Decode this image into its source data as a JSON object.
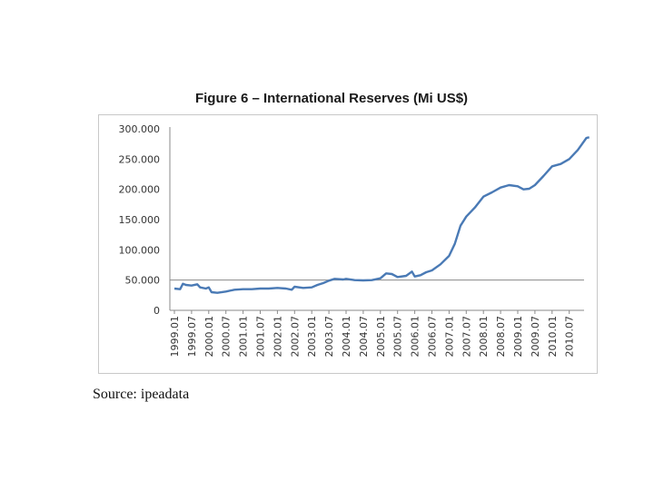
{
  "chart_data": {
    "type": "line",
    "title": "Figure 6 – International Reserves (Mi US$)",
    "xlabel": "",
    "ylabel": "",
    "ylim": [
      0,
      300000
    ],
    "y_ticks": [
      {
        "value": 300000,
        "label": "300.000"
      },
      {
        "value": 250000,
        "label": "250.000"
      },
      {
        "value": 200000,
        "label": "200.000"
      },
      {
        "value": 150000,
        "label": "150.000"
      },
      {
        "value": 100000,
        "label": "100.000"
      },
      {
        "value": 50000,
        "label": "50.000"
      },
      {
        "value": 0,
        "label": "0"
      }
    ],
    "x_ticks": [
      "1999.01",
      "1999.07",
      "2000.01",
      "2000.07",
      "2001.01",
      "2001.07",
      "2002.01",
      "2002.07",
      "2003.01",
      "2003.07",
      "2004.01",
      "2004.07",
      "2005.01",
      "2005.07",
      "2006.01",
      "2006.07",
      "2007.01",
      "2007.07",
      "2008.01",
      "2008.07",
      "2009.01",
      "2009.07",
      "2010.01",
      "2010.07"
    ],
    "gridlines": [
      50000
    ],
    "series": [
      {
        "name": "International Reserves",
        "color": "#4a7ab5",
        "points": [
          [
            "1999.01",
            36000
          ],
          [
            "1999.03",
            35000
          ],
          [
            "1999.04",
            44000
          ],
          [
            "1999.05",
            42000
          ],
          [
            "1999.07",
            41000
          ],
          [
            "1999.09",
            43000
          ],
          [
            "1999.10",
            38000
          ],
          [
            "1999.12",
            36000
          ],
          [
            "2000.01",
            38000
          ],
          [
            "2000.02",
            30000
          ],
          [
            "2000.04",
            29000
          ],
          [
            "2000.07",
            31000
          ],
          [
            "2000.10",
            34000
          ],
          [
            "2001.01",
            35000
          ],
          [
            "2001.04",
            35000
          ],
          [
            "2001.07",
            36000
          ],
          [
            "2001.10",
            36000
          ],
          [
            "2002.01",
            37000
          ],
          [
            "2002.04",
            36000
          ],
          [
            "2002.06",
            34000
          ],
          [
            "2002.07",
            39000
          ],
          [
            "2002.10",
            37000
          ],
          [
            "2003.01",
            38000
          ],
          [
            "2003.03",
            42000
          ],
          [
            "2003.05",
            45000
          ],
          [
            "2003.07",
            49000
          ],
          [
            "2003.09",
            52000
          ],
          [
            "2003.12",
            51000
          ],
          [
            "2004.01",
            52000
          ],
          [
            "2004.04",
            50000
          ],
          [
            "2004.07",
            49500
          ],
          [
            "2004.10",
            50000
          ],
          [
            "2005.01",
            53000
          ],
          [
            "2005.03",
            61000
          ],
          [
            "2005.05",
            60000
          ],
          [
            "2005.07",
            55000
          ],
          [
            "2005.10",
            57000
          ],
          [
            "2005.12",
            64000
          ],
          [
            "2006.01",
            56000
          ],
          [
            "2006.03",
            58000
          ],
          [
            "2006.05",
            63000
          ],
          [
            "2006.07",
            66000
          ],
          [
            "2006.10",
            76000
          ],
          [
            "2007.01",
            90000
          ],
          [
            "2007.03",
            110000
          ],
          [
            "2007.05",
            140000
          ],
          [
            "2007.07",
            155000
          ],
          [
            "2007.10",
            170000
          ],
          [
            "2008.01",
            188000
          ],
          [
            "2008.04",
            195000
          ],
          [
            "2008.07",
            203000
          ],
          [
            "2008.10",
            207000
          ],
          [
            "2009.01",
            205000
          ],
          [
            "2009.03",
            200000
          ],
          [
            "2009.05",
            201000
          ],
          [
            "2009.07",
            207000
          ],
          [
            "2009.10",
            222000
          ],
          [
            "2010.01",
            238000
          ],
          [
            "2010.04",
            242000
          ],
          [
            "2010.07",
            250000
          ],
          [
            "2010.10",
            265000
          ],
          [
            "2011.01",
            285000
          ],
          [
            "2011.02",
            286000
          ]
        ]
      }
    ]
  },
  "source": "Source: ipeadata"
}
